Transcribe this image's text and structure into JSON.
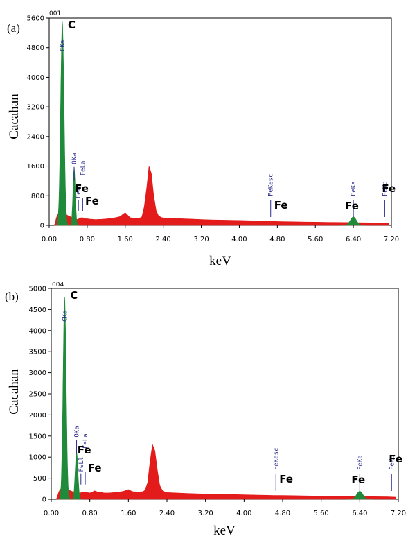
{
  "colors": {
    "background_spectrum": "#e31b1b",
    "peak_fill": "#1f8a3a",
    "line_marker": "#2b2b8f",
    "axis": "#000000"
  },
  "chart_data": [
    {
      "type": "area",
      "panel_label": "(a)",
      "spectrum_id": "001",
      "xlabel": "keV",
      "ylabel": "Cacahan",
      "xlim": [
        0.0,
        7.2
      ],
      "ylim": [
        0,
        5600
      ],
      "x_ticks": [
        "0.00",
        "0.80",
        "1.60",
        "2.40",
        "3.20",
        "4.00",
        "4.80",
        "5.60",
        "6.40",
        "7.20"
      ],
      "y_ticks": [
        "0",
        "800",
        "1600",
        "2400",
        "3200",
        "4000",
        "4800",
        "5600"
      ],
      "grid": false,
      "series": [
        {
          "role": "background",
          "x": [
            0.1,
            0.12,
            0.15,
            0.18,
            0.2,
            0.25,
            0.3,
            0.35,
            0.4,
            0.45,
            0.5,
            0.52,
            0.55,
            0.6,
            0.65,
            0.7,
            0.75,
            0.8,
            0.85,
            0.9,
            0.95,
            1.0,
            1.1,
            1.2,
            1.3,
            1.4,
            1.5,
            1.55,
            1.6,
            1.65,
            1.7,
            1.8,
            1.9,
            1.95,
            2.0,
            2.05,
            2.1,
            2.15,
            2.2,
            2.25,
            2.3,
            2.35,
            2.4,
            2.6,
            2.8,
            3.0,
            3.2,
            3.4,
            3.6,
            3.8,
            4.0,
            4.2,
            4.4,
            4.6,
            4.8,
            5.0,
            5.2,
            5.4,
            5.6,
            5.8,
            6.0,
            6.2,
            6.4,
            6.6,
            6.8,
            7.0,
            7.15
          ],
          "y": [
            0,
            40,
            200,
            300,
            320,
            330,
            320,
            300,
            260,
            230,
            200,
            190,
            170,
            160,
            200,
            210,
            180,
            180,
            170,
            165,
            160,
            160,
            165,
            175,
            190,
            210,
            240,
            300,
            340,
            280,
            210,
            190,
            195,
            230,
            500,
            1000,
            1600,
            1400,
            800,
            400,
            260,
            220,
            200,
            190,
            180,
            170,
            160,
            150,
            145,
            140,
            135,
            128,
            120,
            112,
            105,
            100,
            95,
            90,
            88,
            85,
            80,
            78,
            75,
            72,
            70,
            68,
            60
          ]
        },
        {
          "role": "peaks",
          "peaks": [
            {
              "label": "CKa",
              "center": 0.277,
              "height": 5500,
              "width": 0.05
            },
            {
              "label": "OKa",
              "center": 0.525,
              "height": 1550,
              "width": 0.035
            },
            {
              "label": "FeKa",
              "center": 6.4,
              "height": 230,
              "width": 0.09
            }
          ]
        }
      ],
      "line_markers": [
        {
          "label": "CKa",
          "kev": 0.277
        },
        {
          "label": "OKa",
          "kev": 0.525
        },
        {
          "label": "FeLl",
          "kev": 0.615
        },
        {
          "label": "FeLa",
          "kev": 0.705
        },
        {
          "label": "FeKesc",
          "kev": 4.66
        },
        {
          "label": "FeKa",
          "kev": 6.4
        },
        {
          "label": "FeKb",
          "kev": 7.06
        }
      ],
      "element_labels": [
        {
          "text": "C",
          "kev": 0.277
        },
        {
          "text": "Fe",
          "kev": 0.7
        },
        {
          "text": "Fe",
          "kev": 0.6
        },
        {
          "text": "Fe",
          "kev": 4.66
        },
        {
          "text": "Fe",
          "kev": 6.4
        },
        {
          "text": "Fe",
          "kev": 7.06
        }
      ]
    },
    {
      "type": "area",
      "panel_label": "(b)",
      "spectrum_id": "004",
      "xlabel": "keV",
      "ylabel": "Cacahan",
      "xlim": [
        0.0,
        7.2
      ],
      "ylim": [
        0,
        5000
      ],
      "x_ticks": [
        "0.00",
        "0.80",
        "1.60",
        "2.40",
        "3.20",
        "4.00",
        "4.80",
        "5.60",
        "6.40",
        "7.20"
      ],
      "y_ticks": [
        "0",
        "500",
        "1000",
        "1500",
        "2000",
        "2500",
        "3000",
        "3500",
        "4000",
        "4500",
        "5000"
      ],
      "grid": false,
      "series": [
        {
          "role": "background",
          "x": [
            0.1,
            0.12,
            0.15,
            0.18,
            0.2,
            0.25,
            0.3,
            0.35,
            0.4,
            0.45,
            0.5,
            0.55,
            0.6,
            0.65,
            0.7,
            0.75,
            0.8,
            0.85,
            0.9,
            0.95,
            1.0,
            1.05,
            1.1,
            1.2,
            1.3,
            1.4,
            1.5,
            1.55,
            1.6,
            1.65,
            1.7,
            1.8,
            1.9,
            1.95,
            2.0,
            2.05,
            2.1,
            2.15,
            2.2,
            2.25,
            2.3,
            2.35,
            2.4,
            2.6,
            2.8,
            3.0,
            3.2,
            3.4,
            3.6,
            3.8,
            4.0,
            4.2,
            4.4,
            4.6,
            4.8,
            5.0,
            5.2,
            5.4,
            5.6,
            5.8,
            6.0,
            6.2,
            6.4,
            6.6,
            6.8,
            7.0,
            7.15
          ],
          "y": [
            0,
            40,
            150,
            230,
            250,
            260,
            250,
            230,
            200,
            180,
            150,
            140,
            150,
            170,
            180,
            160,
            150,
            170,
            200,
            180,
            170,
            160,
            150,
            150,
            160,
            170,
            190,
            210,
            230,
            200,
            180,
            175,
            180,
            220,
            400,
            900,
            1300,
            1150,
            700,
            330,
            220,
            180,
            160,
            150,
            140,
            130,
            125,
            120,
            115,
            110,
            105,
            100,
            95,
            90,
            88,
            85,
            80,
            78,
            75,
            72,
            70,
            68,
            65,
            62,
            60,
            58,
            50
          ]
        },
        {
          "role": "peaks",
          "peaks": [
            {
              "label": "CKa",
              "center": 0.277,
              "height": 4800,
              "width": 0.045
            },
            {
              "label": "OKa",
              "center": 0.525,
              "height": 1120,
              "width": 0.04
            },
            {
              "label": "FeKa",
              "center": 6.4,
              "height": 190,
              "width": 0.09
            }
          ]
        }
      ],
      "line_markers": [
        {
          "label": "CKa",
          "kev": 0.277
        },
        {
          "label": "OKa",
          "kev": 0.525
        },
        {
          "label": "FeLl",
          "kev": 0.615
        },
        {
          "label": "FeLa",
          "kev": 0.705
        },
        {
          "label": "FeKesc",
          "kev": 4.66
        },
        {
          "label": "FeKa",
          "kev": 6.4
        },
        {
          "label": "FeKb",
          "kev": 7.06
        }
      ],
      "element_labels": [
        {
          "text": "C",
          "kev": 0.277
        },
        {
          "text": "Fe",
          "kev": 0.7
        },
        {
          "text": "Fe",
          "kev": 0.6
        },
        {
          "text": "Fe",
          "kev": 4.66
        },
        {
          "text": "Fe",
          "kev": 6.4
        },
        {
          "text": "Fe",
          "kev": 7.06
        }
      ]
    }
  ]
}
